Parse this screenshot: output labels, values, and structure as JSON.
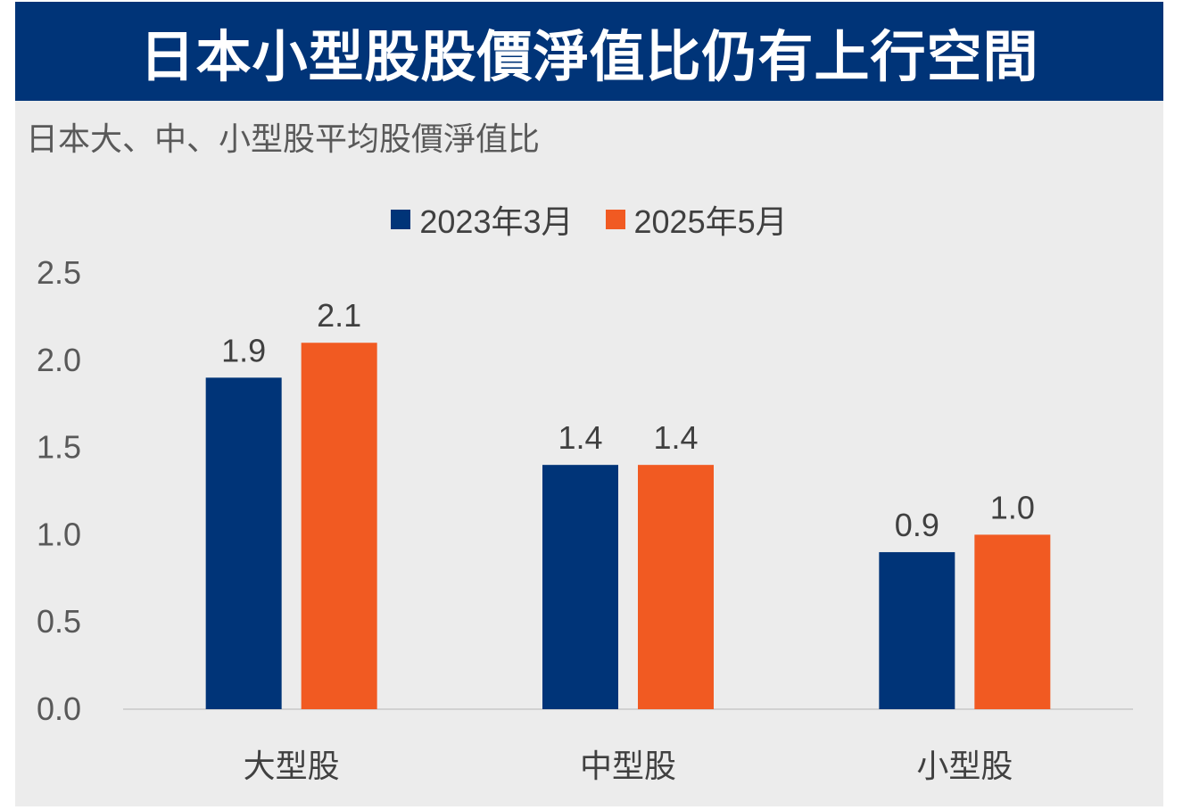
{
  "header": {
    "title": "日本小型股股價淨值比仍有上行空間"
  },
  "chart_data": {
    "type": "bar",
    "title": "日本大、中、小型股平均股價淨值比",
    "categories": [
      "大型股",
      "中型股",
      "小型股"
    ],
    "series": [
      {
        "name": "2023年3月",
        "values": [
          1.9,
          1.4,
          0.9
        ],
        "color": "#003478"
      },
      {
        "name": "2025年5月",
        "values": [
          2.1,
          1.4,
          1.0
        ],
        "color": "#f15a22"
      }
    ],
    "ylim": [
      0,
      2.5
    ],
    "yticks": [
      "0.0",
      "0.5",
      "1.0",
      "1.5",
      "2.0",
      "2.5"
    ],
    "data_labels": [
      [
        "1.9",
        "1.4",
        "0.9"
      ],
      [
        "2.1",
        "1.4",
        "1.0"
      ]
    ],
    "xlabel": "",
    "ylabel": "",
    "grid": false,
    "legend_position": "top-center"
  }
}
